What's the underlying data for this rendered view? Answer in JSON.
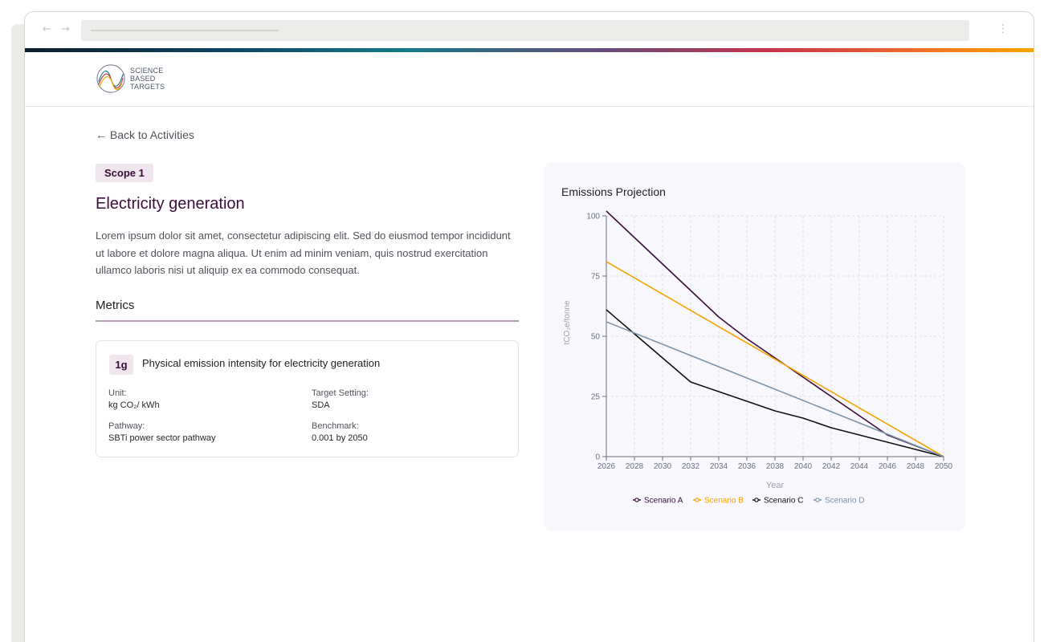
{
  "browser": {
    "nav_arrows": "← →",
    "menu_glyph": "⋮"
  },
  "brand": {
    "line1": "SCIENCE",
    "line2": "BASED",
    "line3": "TARGETS"
  },
  "back_link": "← Back to Activities",
  "scope_badge": "Scope 1",
  "title": "Electricity generation",
  "description": "Lorem ipsum dolor sit amet, consectetur adipiscing elit. Sed do eiusmod tempor incididunt ut labore et dolore magna aliqua. Ut enim ad minim veniam, quis nostrud exercitation ullamco laboris nisi ut aliquip ex ea commodo consequat.",
  "metrics_heading": "Metrics",
  "metric": {
    "code": "1g",
    "name": "Physical emission intensity for electricity generation",
    "unit_label": "Unit:",
    "unit_value": "kg CO₂/ kWh",
    "target_label": "Target Setting:",
    "target_value": "SDA",
    "pathway_label": "Pathway:",
    "pathway_value": "SBTi power sector pathway",
    "benchmark_label": "Benchmark:",
    "benchmark_value": "0.001 by 2050"
  },
  "colors": {
    "brand": "#3b0d3a",
    "scenario_a": "#3b0d3a",
    "scenario_b": "#f5a300",
    "scenario_c": "#111111",
    "scenario_d": "#7c93a8"
  },
  "chart_data": {
    "type": "line",
    "title": "Emissions Projection",
    "xlabel": "Year",
    "ylabel": "tCO₂e/tonne",
    "xlim": [
      2026,
      2050
    ],
    "ylim": [
      0,
      100
    ],
    "x_ticks": [
      2026,
      2028,
      2030,
      2032,
      2034,
      2036,
      2038,
      2040,
      2042,
      2044,
      2046,
      2048,
      2050
    ],
    "y_ticks": [
      0,
      25,
      50,
      75,
      100
    ],
    "grid": true,
    "legend_position": "bottom",
    "series": [
      {
        "name": "Scenario A",
        "color": "#3b0d3a",
        "points": [
          [
            2026,
            102
          ],
          [
            2030,
            80
          ],
          [
            2032,
            69
          ],
          [
            2034,
            58
          ],
          [
            2036,
            49
          ],
          [
            2038,
            41
          ],
          [
            2040,
            33
          ],
          [
            2042,
            25
          ],
          [
            2044,
            17
          ],
          [
            2046,
            9
          ],
          [
            2050,
            0
          ]
        ]
      },
      {
        "name": "Scenario B",
        "color": "#f5a300",
        "points": [
          [
            2026,
            81
          ],
          [
            2050,
            0
          ]
        ]
      },
      {
        "name": "Scenario C",
        "color": "#111111",
        "points": [
          [
            2026,
            61
          ],
          [
            2028,
            51
          ],
          [
            2030,
            41
          ],
          [
            2032,
            31
          ],
          [
            2034,
            27
          ],
          [
            2036,
            23
          ],
          [
            2038,
            19
          ],
          [
            2040,
            16
          ],
          [
            2042,
            12
          ],
          [
            2044,
            9
          ],
          [
            2046,
            6
          ],
          [
            2048,
            3
          ],
          [
            2050,
            0
          ]
        ]
      },
      {
        "name": "Scenario D",
        "color": "#7c93a8",
        "points": [
          [
            2026,
            56
          ],
          [
            2050,
            0
          ]
        ]
      }
    ]
  }
}
